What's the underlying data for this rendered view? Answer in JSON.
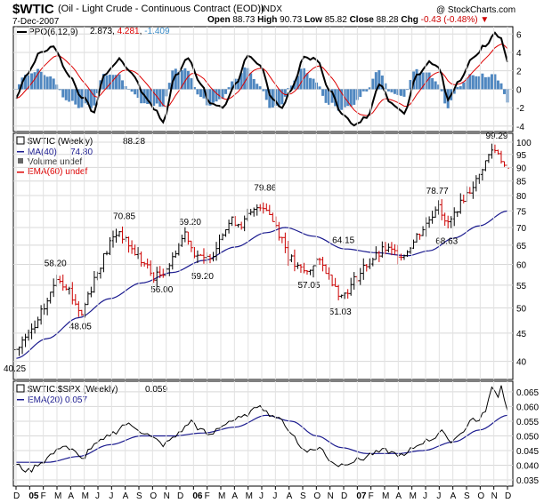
{
  "header": {
    "symbol": "$WTIC",
    "description": "(Oil - Light Crude - Continuous Contract (EOD))",
    "exchange": "INDX",
    "watermark": "@ StockCharts.com",
    "date": "7-Dec-2007",
    "open_label": "Open",
    "open": "88.73",
    "high_label": "High",
    "high": "90.73",
    "low_label": "Low",
    "low": "85.82",
    "close_label": "Close",
    "close": "88.28",
    "chg_label": "Chg",
    "chg": "-0.43 (-0.48%)",
    "chg_color": "#cc0000"
  },
  "colors": {
    "ma40": "#1b1b8f",
    "ema60": "#dd0000",
    "ppo_line": "#000000",
    "ppo_signal": "#dd0000",
    "ppo_hist": "#4f87c0",
    "ppo_hist_value": "#3c8dc9",
    "up_bar": "#000000",
    "down_bar": "#cc0000",
    "ratio_line": "#000000",
    "ema20": "#1b1b8f"
  },
  "chart_data": [
    {
      "type": "bar",
      "panel": "ppo",
      "legend": {
        "name": "PPO(6,12,9)",
        "ppo_value": "2.873",
        "signal_value": "4.281",
        "hist_value": "-1.409"
      },
      "y_ticks": [
        "6",
        "4",
        "2",
        "0",
        "-2",
        "-4"
      ],
      "ylim": [
        -4.5,
        6.7
      ],
      "weeks": 158,
      "ppo_keys": [
        [
          0,
          -1
        ],
        [
          3,
          1.5
        ],
        [
          8,
          4
        ],
        [
          12,
          4.6
        ],
        [
          17,
          1.5
        ],
        [
          21,
          -0.8
        ],
        [
          25,
          -2.5
        ],
        [
          28,
          1.5
        ],
        [
          33,
          3.2
        ],
        [
          37,
          1.8
        ],
        [
          41,
          -0.6
        ],
        [
          44,
          -2.1
        ],
        [
          47,
          -3.5
        ],
        [
          51,
          1.5
        ],
        [
          55,
          3.5
        ],
        [
          59,
          0.5
        ],
        [
          62,
          -1.5
        ],
        [
          66,
          -2
        ],
        [
          70,
          0.5
        ],
        [
          74,
          3.5
        ],
        [
          78,
          2.5
        ],
        [
          82,
          -1
        ],
        [
          85,
          -2
        ],
        [
          88,
          0
        ],
        [
          92,
          3.5
        ],
        [
          96,
          3.2
        ],
        [
          100,
          0
        ],
        [
          104,
          -2.5
        ],
        [
          108,
          -4
        ],
        [
          112,
          -3
        ],
        [
          116,
          0.5
        ],
        [
          120,
          -1.5
        ],
        [
          124,
          -2.5
        ],
        [
          128,
          1.5
        ],
        [
          132,
          3
        ],
        [
          135,
          2.5
        ],
        [
          138,
          -1
        ],
        [
          142,
          1
        ],
        [
          146,
          3.5
        ],
        [
          150,
          4.8
        ],
        [
          153,
          6.2
        ],
        [
          155,
          5.5
        ],
        [
          157,
          3
        ]
      ]
    },
    {
      "type": "bar",
      "panel": "price",
      "legend": {
        "title": "$WTIC (Weekly)",
        "last": "88.28",
        "ma_name": "MA(40)",
        "ma_value": "74.80",
        "vol_name": "Volume undef",
        "ema_name": "EMA(60) undef"
      },
      "y_ticks": [
        "100",
        "95",
        "90",
        "85",
        "80",
        "75",
        "70",
        "65",
        "60",
        "55",
        "50",
        "45",
        "40"
      ],
      "scale": "log",
      "ylim": [
        37.5,
        103
      ],
      "x_ticks": [
        "D",
        "05",
        "F",
        "M",
        "A",
        "M",
        "J",
        "J",
        "A",
        "S",
        "O",
        "N",
        "D",
        "06",
        "F",
        "M",
        "A",
        "M",
        "J",
        "J",
        "A",
        "S",
        "O",
        "N",
        "D",
        "07",
        "F",
        "M",
        "A",
        "M",
        "J",
        "J",
        "A",
        "S",
        "O",
        "N",
        "D"
      ],
      "close_keys": [
        [
          0,
          42
        ],
        [
          3,
          44
        ],
        [
          6,
          46
        ],
        [
          9,
          50
        ],
        [
          11,
          53
        ],
        [
          13,
          57
        ],
        [
          16,
          55
        ],
        [
          19,
          51
        ],
        [
          21,
          48.5
        ],
        [
          23,
          53
        ],
        [
          26,
          58
        ],
        [
          28,
          62
        ],
        [
          31,
          67
        ],
        [
          33,
          69
        ],
        [
          35,
          66
        ],
        [
          38,
          63
        ],
        [
          41,
          60
        ],
        [
          44,
          57
        ],
        [
          46,
          57.5
        ],
        [
          49,
          60
        ],
        [
          52,
          65
        ],
        [
          54,
          68.5
        ],
        [
          57,
          63
        ],
        [
          60,
          61
        ],
        [
          63,
          63
        ],
        [
          66,
          69
        ],
        [
          69,
          72
        ],
        [
          72,
          71
        ],
        [
          75,
          74
        ],
        [
          78,
          77
        ],
        [
          80,
          76
        ],
        [
          82,
          72
        ],
        [
          85,
          67
        ],
        [
          87,
          62
        ],
        [
          90,
          59
        ],
        [
          93,
          58
        ],
        [
          96,
          61
        ],
        [
          98,
          59.5
        ],
        [
          101,
          56
        ],
        [
          104,
          52.5
        ],
        [
          106,
          54
        ],
        [
          109,
          57
        ],
        [
          112,
          60
        ],
        [
          115,
          62
        ],
        [
          118,
          64
        ],
        [
          121,
          63
        ],
        [
          124,
          62.5
        ],
        [
          126,
          65
        ],
        [
          129,
          68.5
        ],
        [
          131,
          71
        ],
        [
          133,
          74
        ],
        [
          135,
          78
        ],
        [
          137,
          71
        ],
        [
          139,
          72
        ],
        [
          141,
          76
        ],
        [
          144,
          80.5
        ],
        [
          147,
          85
        ],
        [
          150,
          92
        ],
        [
          152,
          97
        ],
        [
          154,
          96
        ],
        [
          156,
          90.5
        ],
        [
          157,
          88.3
        ]
      ],
      "ma40_keys": [
        [
          0,
          40.5
        ],
        [
          10,
          44
        ],
        [
          20,
          48
        ],
        [
          30,
          52
        ],
        [
          40,
          55.5
        ],
        [
          50,
          58
        ],
        [
          60,
          61
        ],
        [
          70,
          64.5
        ],
        [
          80,
          68.5
        ],
        [
          86,
          70
        ],
        [
          95,
          67.5
        ],
        [
          105,
          64
        ],
        [
          115,
          63
        ],
        [
          125,
          62.2
        ],
        [
          132,
          63.5
        ],
        [
          140,
          67
        ],
        [
          148,
          70.5
        ],
        [
          157,
          75
        ]
      ],
      "annotations": [
        {
          "text": "40.25",
          "week": 0,
          "value": 40.25,
          "pos": "below"
        },
        {
          "text": "48.05",
          "week": 21,
          "value": 48.05,
          "pos": "below"
        },
        {
          "text": "58.20",
          "week": 13,
          "value": 58.2,
          "pos": "above"
        },
        {
          "text": "70.85",
          "week": 35,
          "value": 70.85,
          "pos": "above"
        },
        {
          "text": "56.00",
          "week": 47,
          "value": 56.0,
          "pos": "below"
        },
        {
          "text": "69.20",
          "week": 56,
          "value": 69.2,
          "pos": "above"
        },
        {
          "text": "59.20",
          "week": 60,
          "value": 59.2,
          "pos": "below"
        },
        {
          "text": "79.86",
          "week": 80,
          "value": 79.86,
          "pos": "above"
        },
        {
          "text": "57.05",
          "week": 94,
          "value": 57.05,
          "pos": "below"
        },
        {
          "text": "64.15",
          "week": 105,
          "value": 64.15,
          "pos": "above"
        },
        {
          "text": "51.03",
          "week": 104,
          "value": 51.03,
          "pos": "below"
        },
        {
          "text": "78.77",
          "week": 135,
          "value": 78.77,
          "pos": "above"
        },
        {
          "text": "68.63",
          "week": 138,
          "value": 68.63,
          "pos": "below"
        },
        {
          "text": "99.29",
          "week": 154,
          "value": 99.29,
          "pos": "above"
        }
      ]
    },
    {
      "type": "line",
      "panel": "ratio",
      "legend": {
        "title": "$WTIC:$SPX (Weekly)",
        "last": "0.059",
        "ema_name": "EMA(20)",
        "ema_value": "0.057"
      },
      "y_ticks": [
        "0.065",
        "0.060",
        "0.055",
        "0.050",
        "0.045",
        "0.040",
        "0.035"
      ],
      "ylim": [
        0.0335,
        0.068
      ],
      "ratio_keys": [
        [
          0,
          0.04
        ],
        [
          4,
          0.038
        ],
        [
          8,
          0.041
        ],
        [
          12,
          0.044
        ],
        [
          15,
          0.047
        ],
        [
          18,
          0.045
        ],
        [
          21,
          0.042
        ],
        [
          24,
          0.046
        ],
        [
          27,
          0.048
        ],
        [
          31,
          0.051
        ],
        [
          35,
          0.054
        ],
        [
          38,
          0.053
        ],
        [
          41,
          0.051
        ],
        [
          44,
          0.049
        ],
        [
          47,
          0.047
        ],
        [
          50,
          0.049
        ],
        [
          53,
          0.052
        ],
        [
          56,
          0.055
        ],
        [
          59,
          0.052
        ],
        [
          62,
          0.05
        ],
        [
          65,
          0.053
        ],
        [
          68,
          0.055
        ],
        [
          72,
          0.056
        ],
        [
          75,
          0.058
        ],
        [
          78,
          0.061
        ],
        [
          80,
          0.058
        ],
        [
          82,
          0.057
        ],
        [
          85,
          0.055
        ],
        [
          88,
          0.051
        ],
        [
          91,
          0.046
        ],
        [
          94,
          0.045
        ],
        [
          97,
          0.046
        ],
        [
          100,
          0.042
        ],
        [
          103,
          0.04
        ],
        [
          106,
          0.041
        ],
        [
          110,
          0.042
        ],
        [
          114,
          0.044
        ],
        [
          118,
          0.045
        ],
        [
          121,
          0.044
        ],
        [
          124,
          0.043
        ],
        [
          127,
          0.046
        ],
        [
          130,
          0.048
        ],
        [
          133,
          0.049
        ],
        [
          136,
          0.052
        ],
        [
          138,
          0.048
        ],
        [
          140,
          0.049
        ],
        [
          143,
          0.052
        ],
        [
          146,
          0.056
        ],
        [
          148,
          0.055
        ],
        [
          150,
          0.059
        ],
        [
          152,
          0.066
        ],
        [
          154,
          0.064
        ],
        [
          155,
          0.067
        ],
        [
          157,
          0.059
        ]
      ],
      "ema20_keys": [
        [
          0,
          0.041
        ],
        [
          10,
          0.041
        ],
        [
          20,
          0.043
        ],
        [
          30,
          0.047
        ],
        [
          40,
          0.05
        ],
        [
          50,
          0.05
        ],
        [
          60,
          0.051
        ],
        [
          70,
          0.053
        ],
        [
          80,
          0.057
        ],
        [
          88,
          0.055
        ],
        [
          96,
          0.05
        ],
        [
          104,
          0.046
        ],
        [
          112,
          0.044
        ],
        [
          122,
          0.044
        ],
        [
          130,
          0.045
        ],
        [
          140,
          0.048
        ],
        [
          148,
          0.052
        ],
        [
          157,
          0.057
        ]
      ]
    }
  ]
}
